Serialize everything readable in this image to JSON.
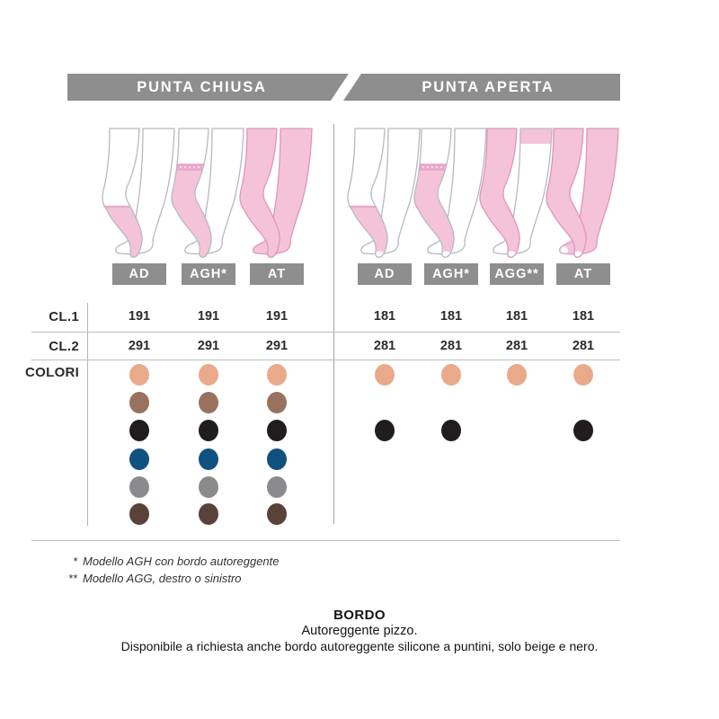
{
  "header": {
    "left_label": "PUNTA CHIUSA",
    "right_label": "PUNTA APERTA"
  },
  "table": {
    "row_labels": {
      "cl1": "CL.1",
      "cl2": "CL.2",
      "colori": "COLORI"
    },
    "columns": [
      {
        "model": "AD",
        "group": "punta_chiusa",
        "toe": "closed",
        "variant": "knee_sock",
        "cl1": "191",
        "cl2": "291"
      },
      {
        "model": "AGH*",
        "group": "punta_chiusa",
        "toe": "closed",
        "variant": "thigh_high",
        "cl1": "191",
        "cl2": "291"
      },
      {
        "model": "AT",
        "group": "punta_chiusa",
        "toe": "closed",
        "variant": "tights",
        "cl1": "191",
        "cl2": "291"
      },
      {
        "model": "AD",
        "group": "punta_aperta",
        "toe": "open",
        "variant": "knee_sock",
        "cl1": "181",
        "cl2": "281"
      },
      {
        "model": "AGH*",
        "group": "punta_aperta",
        "toe": "open",
        "variant": "thigh_high",
        "cl1": "181",
        "cl2": "281"
      },
      {
        "model": "AGG**",
        "group": "punta_aperta",
        "toe": "open",
        "variant": "single_leg",
        "cl1": "181",
        "cl2": "281"
      },
      {
        "model": "AT",
        "group": "punta_aperta",
        "toe": "open",
        "variant": "tights",
        "cl1": "181",
        "cl2": "281"
      }
    ],
    "colors": [
      {
        "name": "beige",
        "hex": "#e9aa8b",
        "available": [
          true,
          true,
          true,
          true,
          true,
          true,
          true
        ]
      },
      {
        "name": "marrone-chiaro",
        "hex": "#99725d",
        "available": [
          true,
          true,
          true,
          false,
          false,
          false,
          false
        ]
      },
      {
        "name": "nero",
        "hex": "#211d1e",
        "available": [
          true,
          true,
          true,
          true,
          true,
          false,
          true
        ]
      },
      {
        "name": "blu",
        "hex": "#10527f",
        "available": [
          true,
          true,
          true,
          false,
          false,
          false,
          false
        ]
      },
      {
        "name": "grigio",
        "hex": "#8b8b8e",
        "available": [
          true,
          true,
          true,
          false,
          false,
          false,
          false
        ]
      },
      {
        "name": "marrone-scuro",
        "hex": "#59423a",
        "available": [
          true,
          true,
          true,
          false,
          false,
          false,
          false
        ]
      }
    ]
  },
  "footnotes": [
    {
      "marker": "*",
      "text": "Modello AGH con bordo autoreggente"
    },
    {
      "marker": "**",
      "text": "Modello AGG, destro o sinistro"
    }
  ],
  "footer": {
    "title": "BORDO",
    "line1": "Autoreggente pizzo.",
    "line2": "Disponibile a richiesta anche bordo autoreggente silicone a puntini, solo beige e nero."
  },
  "style_colors": {
    "bar_gray": "#8e8e8e",
    "stocking_pink": "#f4c3d8",
    "stocking_band_pink": "#eca9cb",
    "leg_outline_gray": "#b6b9c0",
    "stocking_outline_pink": "#de95ba",
    "line_gray": "#bdbdbd",
    "text_dark": "#2b2b2b"
  }
}
